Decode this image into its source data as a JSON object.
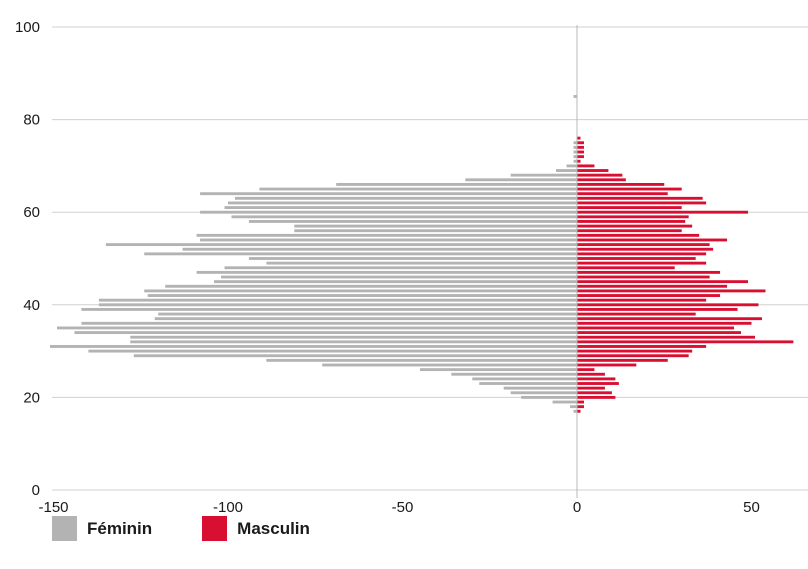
{
  "chart_data": {
    "type": "bar",
    "orientation": "horizontal",
    "stacking": "diverging",
    "x_ticks": [
      -150,
      -100,
      -50,
      0,
      50
    ],
    "y_ticks": [
      0,
      20,
      40,
      60,
      80,
      100
    ],
    "xlim": [
      -152,
      67
    ],
    "ylim": [
      0,
      100
    ],
    "grid": "horizontal",
    "legend_position": "bottom-left",
    "colors": {
      "feminin": "#b3b3b3",
      "masculin": "#d90f32",
      "grid": "#d0d0d0"
    },
    "series": [
      {
        "name": "Féminin",
        "color": "#b3b3b3",
        "points": [
          {
            "age": 17,
            "value": -1
          },
          {
            "age": 18,
            "value": -2
          },
          {
            "age": 19,
            "value": -7
          },
          {
            "age": 20,
            "value": -16
          },
          {
            "age": 21,
            "value": -19
          },
          {
            "age": 22,
            "value": -21
          },
          {
            "age": 23,
            "value": -28
          },
          {
            "age": 24,
            "value": -30
          },
          {
            "age": 25,
            "value": -36
          },
          {
            "age": 26,
            "value": -45
          },
          {
            "age": 27,
            "value": -73
          },
          {
            "age": 28,
            "value": -89
          },
          {
            "age": 29,
            "value": -127
          },
          {
            "age": 30,
            "value": -140
          },
          {
            "age": 31,
            "value": -151
          },
          {
            "age": 32,
            "value": -128
          },
          {
            "age": 33,
            "value": -128
          },
          {
            "age": 34,
            "value": -144
          },
          {
            "age": 35,
            "value": -149
          },
          {
            "age": 36,
            "value": -142
          },
          {
            "age": 37,
            "value": -121
          },
          {
            "age": 38,
            "value": -120
          },
          {
            "age": 39,
            "value": -142
          },
          {
            "age": 40,
            "value": -137
          },
          {
            "age": 41,
            "value": -137
          },
          {
            "age": 42,
            "value": -123
          },
          {
            "age": 43,
            "value": -124
          },
          {
            "age": 44,
            "value": -118
          },
          {
            "age": 45,
            "value": -104
          },
          {
            "age": 46,
            "value": -102
          },
          {
            "age": 47,
            "value": -109
          },
          {
            "age": 48,
            "value": -101
          },
          {
            "age": 49,
            "value": -89
          },
          {
            "age": 50,
            "value": -94
          },
          {
            "age": 51,
            "value": -124
          },
          {
            "age": 52,
            "value": -113
          },
          {
            "age": 53,
            "value": -135
          },
          {
            "age": 54,
            "value": -108
          },
          {
            "age": 55,
            "value": -109
          },
          {
            "age": 56,
            "value": -81
          },
          {
            "age": 57,
            "value": -81
          },
          {
            "age": 58,
            "value": -94
          },
          {
            "age": 59,
            "value": -99
          },
          {
            "age": 60,
            "value": -108
          },
          {
            "age": 61,
            "value": -101
          },
          {
            "age": 62,
            "value": -100
          },
          {
            "age": 63,
            "value": -98
          },
          {
            "age": 64,
            "value": -108
          },
          {
            "age": 65,
            "value": -91
          },
          {
            "age": 66,
            "value": -69
          },
          {
            "age": 67,
            "value": -32
          },
          {
            "age": 68,
            "value": -19
          },
          {
            "age": 69,
            "value": -6
          },
          {
            "age": 70,
            "value": -3
          },
          {
            "age": 71,
            "value": -1
          },
          {
            "age": 72,
            "value": -1
          },
          {
            "age": 73,
            "value": -1
          },
          {
            "age": 74,
            "value": -1
          },
          {
            "age": 75,
            "value": -1
          },
          {
            "age": 85,
            "value": -1
          }
        ]
      },
      {
        "name": "Masculin",
        "color": "#d90f32",
        "points": [
          {
            "age": 17,
            "value": 1
          },
          {
            "age": 18,
            "value": 2
          },
          {
            "age": 19,
            "value": 2
          },
          {
            "age": 20,
            "value": 11
          },
          {
            "age": 21,
            "value": 10
          },
          {
            "age": 22,
            "value": 8
          },
          {
            "age": 23,
            "value": 12
          },
          {
            "age": 24,
            "value": 11
          },
          {
            "age": 25,
            "value": 8
          },
          {
            "age": 26,
            "value": 5
          },
          {
            "age": 27,
            "value": 17
          },
          {
            "age": 28,
            "value": 26
          },
          {
            "age": 29,
            "value": 32
          },
          {
            "age": 30,
            "value": 33
          },
          {
            "age": 31,
            "value": 37
          },
          {
            "age": 32,
            "value": 62
          },
          {
            "age": 33,
            "value": 51
          },
          {
            "age": 34,
            "value": 47
          },
          {
            "age": 35,
            "value": 45
          },
          {
            "age": 36,
            "value": 50
          },
          {
            "age": 37,
            "value": 53
          },
          {
            "age": 38,
            "value": 34
          },
          {
            "age": 39,
            "value": 46
          },
          {
            "age": 40,
            "value": 52
          },
          {
            "age": 41,
            "value": 37
          },
          {
            "age": 42,
            "value": 41
          },
          {
            "age": 43,
            "value": 54
          },
          {
            "age": 44,
            "value": 43
          },
          {
            "age": 45,
            "value": 49
          },
          {
            "age": 46,
            "value": 38
          },
          {
            "age": 47,
            "value": 41
          },
          {
            "age": 48,
            "value": 28
          },
          {
            "age": 49,
            "value": 37
          },
          {
            "age": 50,
            "value": 34
          },
          {
            "age": 51,
            "value": 37
          },
          {
            "age": 52,
            "value": 39
          },
          {
            "age": 53,
            "value": 38
          },
          {
            "age": 54,
            "value": 43
          },
          {
            "age": 55,
            "value": 35
          },
          {
            "age": 56,
            "value": 30
          },
          {
            "age": 57,
            "value": 33
          },
          {
            "age": 58,
            "value": 31
          },
          {
            "age": 59,
            "value": 32
          },
          {
            "age": 60,
            "value": 49
          },
          {
            "age": 61,
            "value": 30
          },
          {
            "age": 62,
            "value": 37
          },
          {
            "age": 63,
            "value": 36
          },
          {
            "age": 64,
            "value": 26
          },
          {
            "age": 65,
            "value": 30
          },
          {
            "age": 66,
            "value": 25
          },
          {
            "age": 67,
            "value": 14
          },
          {
            "age": 68,
            "value": 13
          },
          {
            "age": 69,
            "value": 9
          },
          {
            "age": 70,
            "value": 5
          },
          {
            "age": 71,
            "value": 1
          },
          {
            "age": 72,
            "value": 2
          },
          {
            "age": 73,
            "value": 2
          },
          {
            "age": 74,
            "value": 2
          },
          {
            "age": 75,
            "value": 2
          },
          {
            "age": 76,
            "value": 1
          }
        ]
      }
    ]
  },
  "legend": {
    "items": [
      {
        "label": "Féminin",
        "color": "#b3b3b3"
      },
      {
        "label": "Masculin",
        "color": "#d90f32"
      }
    ]
  }
}
